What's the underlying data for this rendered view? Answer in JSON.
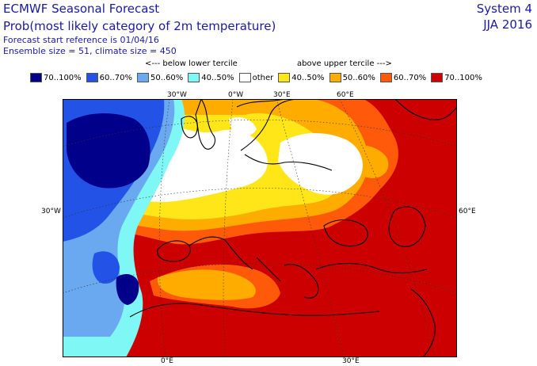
{
  "header": {
    "title": "ECMWF Seasonal Forecast",
    "subtitle": "Prob(most likely category of 2m temperature)",
    "start_reference": "Forecast start reference is 01/04/16",
    "ensemble": "Ensemble size = 51, climate size = 450",
    "system": "System 4",
    "period": "JJA 2016"
  },
  "legend": {
    "below_label": "<--- below lower tercile",
    "above_label": "above upper tercile --->",
    "items": [
      {
        "label": "70..100%",
        "color": "#00008b"
      },
      {
        "label": "60..70%",
        "color": "#2352e6"
      },
      {
        "label": "50..60%",
        "color": "#6aa8ef"
      },
      {
        "label": "40..50%",
        "color": "#7ff7f5"
      },
      {
        "label": "other",
        "color": "#ffffff"
      },
      {
        "label": "40..50%",
        "color": "#ffe619"
      },
      {
        "label": "50..60%",
        "color": "#ffac00"
      },
      {
        "label": "60..70%",
        "color": "#ff5a0a"
      },
      {
        "label": "70..100%",
        "color": "#cc0000"
      }
    ]
  },
  "axis_labels": {
    "top_30w": "30°W",
    "top_0": "0°W",
    "top_30e": "30°E",
    "top_60e": "60°E",
    "left_30w": "30°W",
    "right_60e": "60°E",
    "bottom_0e": "0°E",
    "bottom_30e": "30°E"
  }
}
